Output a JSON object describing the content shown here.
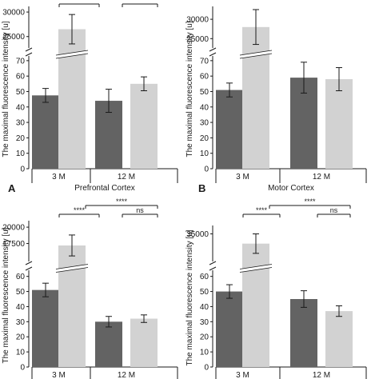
{
  "colors": {
    "dark": "#636363",
    "light": "#d2d2d2",
    "axis": "#1a1a1a"
  },
  "chart_data": [
    {
      "type": "bar",
      "panel_label": "A",
      "xlabel": "Prefrontal Cortex",
      "ylabel": "The maximal fluorescence intensity [u]",
      "categories": [
        "3 M",
        "12 M"
      ],
      "series": [
        {
          "values": [
            47.5,
            44
          ],
          "errors": [
            4.5,
            7.5
          ]
        },
        {
          "values": [
            26500,
            55
          ],
          "errors": [
            3000,
            4.5
          ]
        }
      ],
      "y_lower_ticks": [
        "0",
        "10",
        "20",
        "30",
        "40",
        "50",
        "60",
        "70"
      ],
      "y_upper_ticks": [
        "25000",
        "30000"
      ],
      "ylim_lower": [
        0,
        72
      ],
      "ylim_upper": [
        23000,
        30500
      ],
      "significance": [
        {
          "text": "",
          "pair": "3M-inner"
        },
        {
          "text": "",
          "pair": "12M-inner"
        }
      ]
    },
    {
      "type": "bar",
      "panel_label": "B",
      "xlabel": "Motor Cortex",
      "ylabel": "The maximal fluorescence intensity [u]",
      "categories": [
        "3 M",
        "12 M"
      ],
      "series": [
        {
          "values": [
            51,
            59
          ],
          "errors": [
            4.5,
            10
          ]
        },
        {
          "values": [
            28000,
            58
          ],
          "errors": [
            4500,
            7.5
          ]
        }
      ],
      "y_lower_ticks": [
        "0",
        "10",
        "20",
        "30",
        "40",
        "50",
        "60",
        "70"
      ],
      "y_upper_ticks": [
        "25000",
        "30000"
      ],
      "ylim_lower": [
        0,
        72
      ],
      "ylim_upper": [
        23000,
        32500
      ]
    },
    {
      "type": "bar",
      "panel_label": "",
      "xlabel": "",
      "ylabel": "The maximal fluorescence intensity [u]",
      "categories": [
        "3 M",
        "12 M"
      ],
      "series": [
        {
          "values": [
            51,
            30
          ],
          "errors": [
            4.5,
            3.5
          ]
        },
        {
          "values": [
            17200,
            32
          ],
          "errors": [
            1600,
            2.5
          ]
        }
      ],
      "y_lower_ticks": [
        "0",
        "10",
        "20",
        "30",
        "40",
        "50",
        "60"
      ],
      "y_upper_ticks": [
        "17500",
        "20000"
      ],
      "ylim_lower": [
        0,
        63
      ],
      "ylim_upper": [
        15000,
        20500
      ],
      "significance": [
        {
          "text": "****",
          "pair": "3M-inner"
        },
        {
          "text": "****",
          "pair": "3M-light-to-12M-light"
        },
        {
          "text": "ns",
          "pair": "12M-inner"
        }
      ]
    },
    {
      "type": "bar",
      "panel_label": "",
      "xlabel": "",
      "ylabel": "The maximal fluorescence intensity [u]",
      "categories": [
        "3 M",
        "12 M"
      ],
      "series": [
        {
          "values": [
            50,
            45
          ],
          "errors": [
            4.5,
            5.5
          ]
        },
        {
          "values": [
            33500,
            37
          ],
          "errors": [
            1500,
            3.5
          ]
        }
      ],
      "y_lower_ticks": [
        "0",
        "10",
        "20",
        "30",
        "40",
        "50",
        "60"
      ],
      "y_upper_ticks": [
        "35000"
      ],
      "ylim_lower": [
        0,
        63
      ],
      "ylim_upper": [
        31000,
        35800
      ],
      "significance": [
        {
          "text": "****",
          "pair": "3M-inner"
        },
        {
          "text": "****",
          "pair": "3M-light-to-12M-light"
        },
        {
          "text": "ns",
          "pair": "12M-inner"
        }
      ]
    }
  ]
}
